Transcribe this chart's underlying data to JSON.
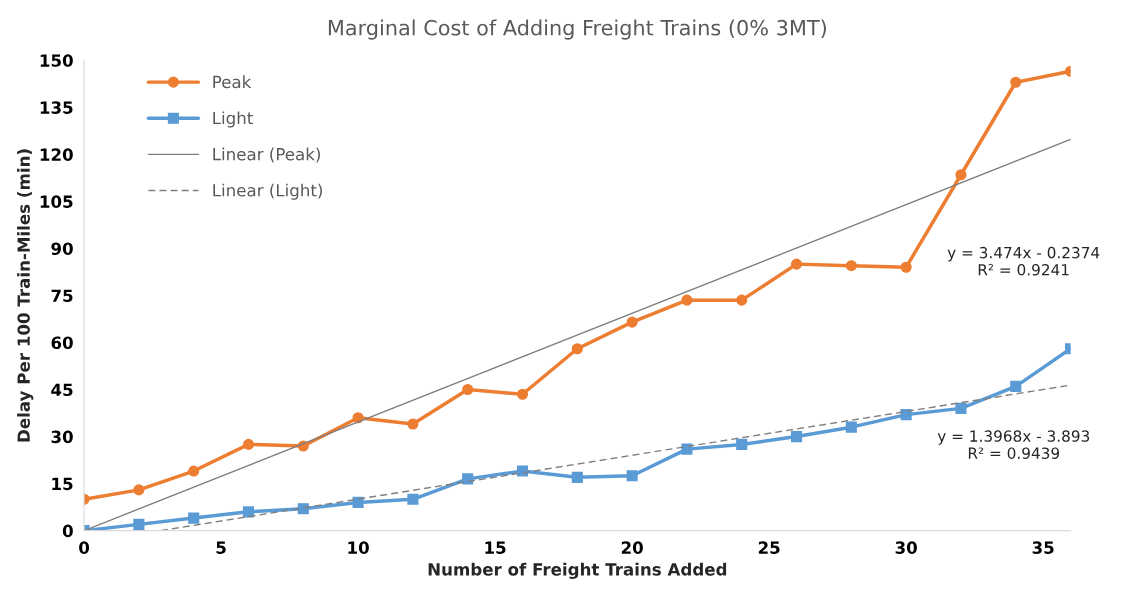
{
  "chart_data": {
    "type": "line",
    "title": "Marginal Cost of Adding Freight Trains (0% 3MT)",
    "xlabel": "Number of Freight Trains Added",
    "ylabel": "Delay Per 100 Train-Miles (min)",
    "x": [
      0,
      2,
      4,
      6,
      8,
      10,
      12,
      14,
      16,
      18,
      20,
      22,
      24,
      26,
      28,
      30,
      32,
      34,
      36
    ],
    "series": [
      {
        "name": "Peak",
        "color": "#ed7d31",
        "marker": "circle",
        "line_style": "solid",
        "values": [
          10,
          13,
          19,
          27.5,
          27,
          36,
          34,
          45,
          43.5,
          58,
          66.5,
          73.5,
          73.5,
          85,
          84.5,
          84,
          113.5,
          143,
          146.5
        ]
      },
      {
        "name": "Light",
        "color": "#5b9bd5",
        "marker": "square",
        "line_style": "solid",
        "values": [
          0,
          2,
          4,
          6,
          7,
          9,
          10,
          16.5,
          19,
          17,
          17.5,
          26,
          27.5,
          30,
          33,
          37,
          39,
          46,
          58
        ]
      },
      {
        "name": "Linear (Peak)",
        "type": "line",
        "color": "#7f7f7f",
        "marker": "none",
        "line_style": "solid",
        "x": [
          0,
          36
        ],
        "values": [
          0,
          124.8
        ]
      },
      {
        "name": "Linear (Light)",
        "type": "line",
        "color": "#7f7f7f",
        "marker": "none",
        "line_style": "dashed",
        "x": [
          2.8,
          36
        ],
        "values": [
          0,
          46.4
        ]
      }
    ],
    "annotations": [
      "y = 3.474x - 0.2374\nR² = 0.9241",
      "y = 1.3968x - 3.893\nR² = 0.9439"
    ],
    "xlim": [
      0,
      36
    ],
    "xticks": [
      0,
      5,
      10,
      15,
      20,
      25,
      30,
      35
    ],
    "ylim": [
      0,
      150
    ],
    "yticks": [
      0,
      15,
      30,
      45,
      60,
      75,
      90,
      105,
      120,
      135,
      150
    ],
    "grid": false,
    "legend": "top left"
  }
}
